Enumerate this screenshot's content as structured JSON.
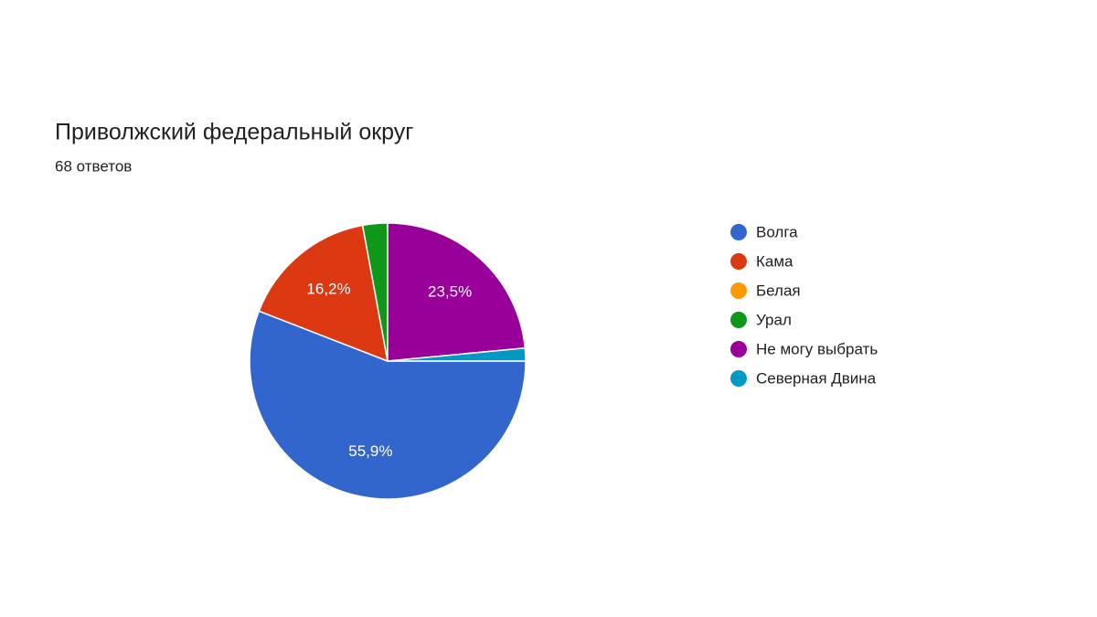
{
  "chart_data": {
    "type": "pie",
    "title": "Приволжский федеральный округ",
    "subtitle": "68 ответов",
    "categories": [
      "Волга",
      "Кама",
      "Белая",
      "Урал",
      "Не могу выбрать",
      "Северная Двина"
    ],
    "values": [
      55.9,
      16.2,
      0,
      2.9,
      23.5,
      1.5
    ],
    "value_labels": [
      "55,9%",
      "16,2%",
      null,
      null,
      "23,5%",
      null
    ],
    "colors": [
      "#3366cc",
      "#dc3912",
      "#ff9900",
      "#109618",
      "#990099",
      "#0099c6"
    ]
  }
}
